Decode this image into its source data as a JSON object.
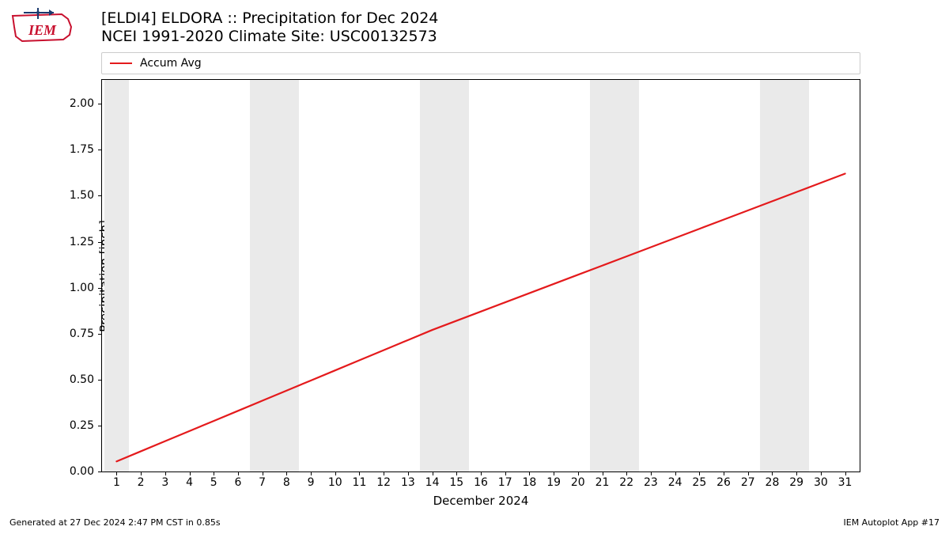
{
  "logo": {
    "outline_color": "#c8102e",
    "arrow_color": "#1a3a6e",
    "text": "IEM",
    "text_color": "#c8102e"
  },
  "title": {
    "line1": "[ELDI4] ELDORA :: Precipitation for Dec 2024",
    "line2": "NCEI 1991-2020 Climate Site: USC00132573"
  },
  "legend": {
    "items": [
      {
        "label": "Accum Avg",
        "color": "#e41a1c"
      }
    ]
  },
  "chart": {
    "type": "line",
    "background_color": "#ffffff",
    "weekend_band_color": "#eaeaea",
    "axis_color": "#000000",
    "ylabel": "Precipitation [inch]",
    "xlabel": "December 2024",
    "ylim": [
      0,
      2.13
    ],
    "yticks": [
      0.0,
      0.25,
      0.5,
      0.75,
      1.0,
      1.25,
      1.5,
      1.75,
      2.0
    ],
    "ytick_labels": [
      "0.00",
      "0.25",
      "0.50",
      "0.75",
      "1.00",
      "1.25",
      "1.50",
      "1.75",
      "2.00"
    ],
    "xlim": [
      0.4,
      31.6
    ],
    "xticks": [
      1,
      2,
      3,
      4,
      5,
      6,
      7,
      8,
      9,
      10,
      11,
      12,
      13,
      14,
      15,
      16,
      17,
      18,
      19,
      20,
      21,
      22,
      23,
      24,
      25,
      26,
      27,
      28,
      29,
      30,
      31
    ],
    "xtick_labels": [
      "1",
      "2",
      "3",
      "4",
      "5",
      "6",
      "7",
      "8",
      "9",
      "10",
      "11",
      "12",
      "13",
      "14",
      "15",
      "16",
      "17",
      "18",
      "19",
      "20",
      "21",
      "22",
      "23",
      "24",
      "25",
      "26",
      "27",
      "28",
      "29",
      "30",
      "31"
    ],
    "weekend_days": [
      1,
      7,
      8,
      14,
      15,
      21,
      22,
      28,
      29
    ],
    "series": [
      {
        "name": "Accum Avg",
        "color": "#e41a1c",
        "line_width": 2.2,
        "x": [
          1,
          2,
          3,
          4,
          5,
          6,
          7,
          8,
          9,
          10,
          11,
          12,
          13,
          14,
          15,
          16,
          17,
          18,
          19,
          20,
          21,
          22,
          23,
          24,
          25,
          26,
          27,
          28,
          29,
          30,
          31
        ],
        "y": [
          0.055,
          0.11,
          0.165,
          0.22,
          0.275,
          0.33,
          0.385,
          0.44,
          0.495,
          0.55,
          0.605,
          0.66,
          0.715,
          0.77,
          0.82,
          0.87,
          0.92,
          0.97,
          1.02,
          1.07,
          1.12,
          1.17,
          1.22,
          1.27,
          1.32,
          1.37,
          1.42,
          1.47,
          1.52,
          1.57,
          1.62
        ]
      }
    ],
    "label_fontsize": 15,
    "tick_fontsize": 14
  },
  "footer": {
    "left": "Generated at 27 Dec 2024 2:47 PM CST in 0.85s",
    "right": "IEM Autoplot App #17"
  }
}
